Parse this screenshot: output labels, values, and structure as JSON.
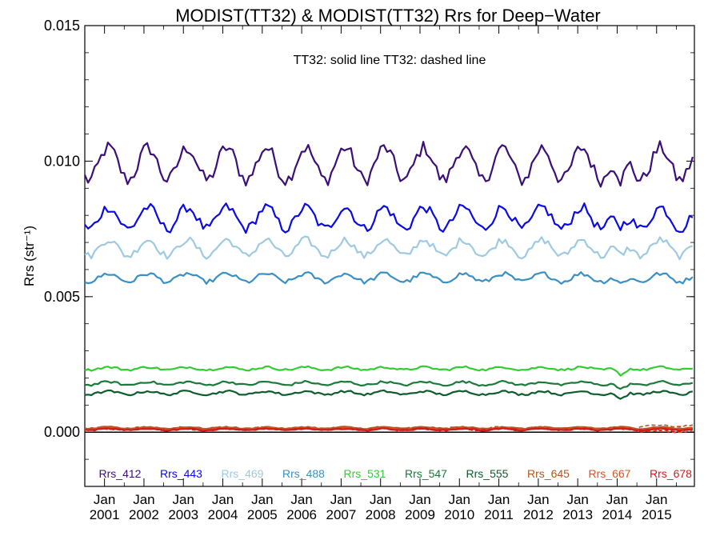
{
  "chart_data": {
    "type": "line",
    "title": "MODIST(TT32) & MODIST(TT32)  Rrs for Deep−Water",
    "ylabel": "Rrs (str⁻¹)",
    "annotation": "TT32: solid line   TT32: dashed line",
    "ylim": [
      -0.002,
      0.015
    ],
    "y_ticks": [
      0.0,
      0.005,
      0.01,
      0.015
    ],
    "y_tick_labels": [
      "0.000",
      "0.005",
      "0.010",
      "0.015"
    ],
    "x_range": [
      "2000-07",
      "2015-12"
    ],
    "x_tick_month": "Jan",
    "x_tick_years": [
      "2001",
      "2002",
      "2003",
      "2004",
      "2005",
      "2006",
      "2007",
      "2008",
      "2009",
      "2010",
      "2011",
      "2012",
      "2013",
      "2014",
      "2015"
    ],
    "zero_line": 0.0,
    "series": [
      {
        "name": "Rrs_412",
        "color": "#3b0f7a",
        "mean": 0.0099,
        "amp": 0.0006,
        "noise": 0.00025,
        "dip2014": 0.0013
      },
      {
        "name": "Rrs_443",
        "color": "#0a0ae6",
        "mean": 0.0079,
        "amp": 0.0004,
        "noise": 0.00018,
        "dip2014": 0.0008
      },
      {
        "name": "Rrs_469",
        "color": "#9ecae1",
        "mean": 0.0068,
        "amp": 0.0003,
        "noise": 0.00013,
        "dip2014": 0.0006
      },
      {
        "name": "Rrs_488",
        "color": "#3a8fc4",
        "mean": 0.0057,
        "amp": 0.00015,
        "noise": 8e-05,
        "dip2014": 0.0004
      },
      {
        "name": "Rrs_531",
        "color": "#33cc33",
        "mean": 0.00235,
        "amp": 5e-05,
        "noise": 4e-05,
        "dip2014": 0.0003
      },
      {
        "name": "Rrs_547",
        "color": "#1a7a3a",
        "mean": 0.0018,
        "amp": 6e-05,
        "noise": 4e-05,
        "dip2014": 0.0003
      },
      {
        "name": "Rrs_555",
        "color": "#0f5c2e",
        "mean": 0.00145,
        "amp": 6e-05,
        "noise": 4e-05,
        "dip2014": 0.0003
      },
      {
        "name": "Rrs_645",
        "color": "#b5541c",
        "mean": 0.00016,
        "amp": 3e-05,
        "noise": 2e-05,
        "dip2014": 0.0
      },
      {
        "name": "Rrs_667",
        "color": "#e0501e",
        "mean": 0.00012,
        "amp": 3e-05,
        "noise": 2e-05,
        "dip2014": 0.0
      },
      {
        "name": "Rrs_678",
        "color": "#c81e1e",
        "mean": 0.0001,
        "amp": 3e-05,
        "noise": 2e-05,
        "dip2014": 0.0
      }
    ]
  }
}
